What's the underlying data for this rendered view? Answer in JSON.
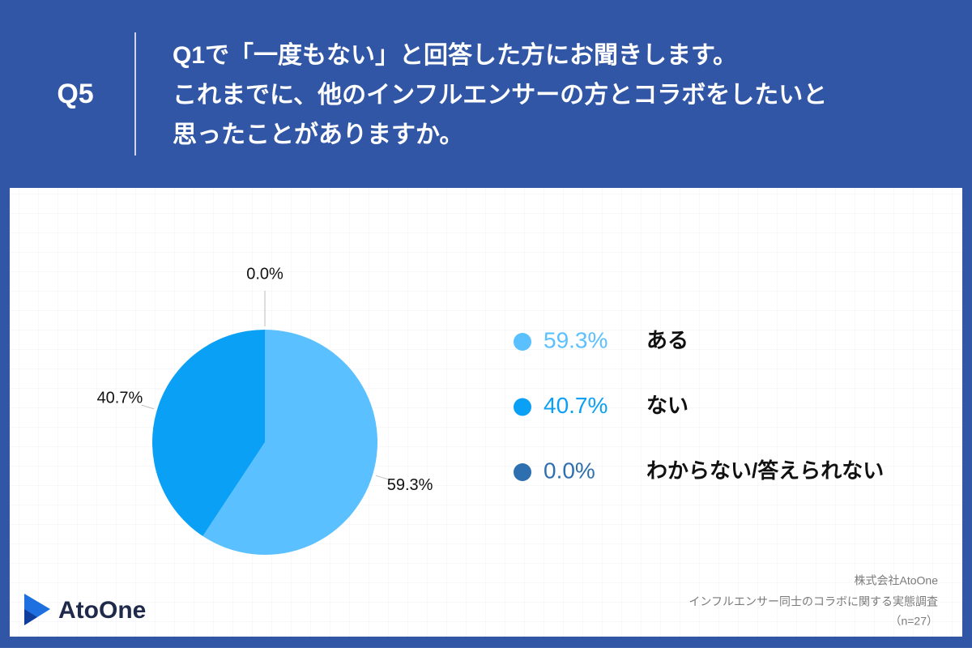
{
  "header": {
    "q_number": "Q5",
    "question": [
      "Q1で「一度もない」と回答した方にお聞きします。",
      "これまでに、他のインフルエンサーの方とコラボをしたいと",
      "思ったことがありますか。"
    ]
  },
  "chart_data": {
    "type": "pie",
    "categories": [
      "ある",
      "ない",
      "わからない/答えられない"
    ],
    "values": [
      59.3,
      40.7,
      0.0
    ],
    "value_labels": [
      "59.3%",
      "40.7%",
      "0.0%"
    ],
    "colors": [
      "#5bc0ff",
      "#0aa0f5",
      "#2e6fb0"
    ],
    "legend": "right"
  },
  "footer": {
    "company": "株式会社AtoOne",
    "survey": "インフルエンサー同士のコラボに関する実態調査",
    "sample": "（n=27）",
    "logo": "AtoOne"
  }
}
